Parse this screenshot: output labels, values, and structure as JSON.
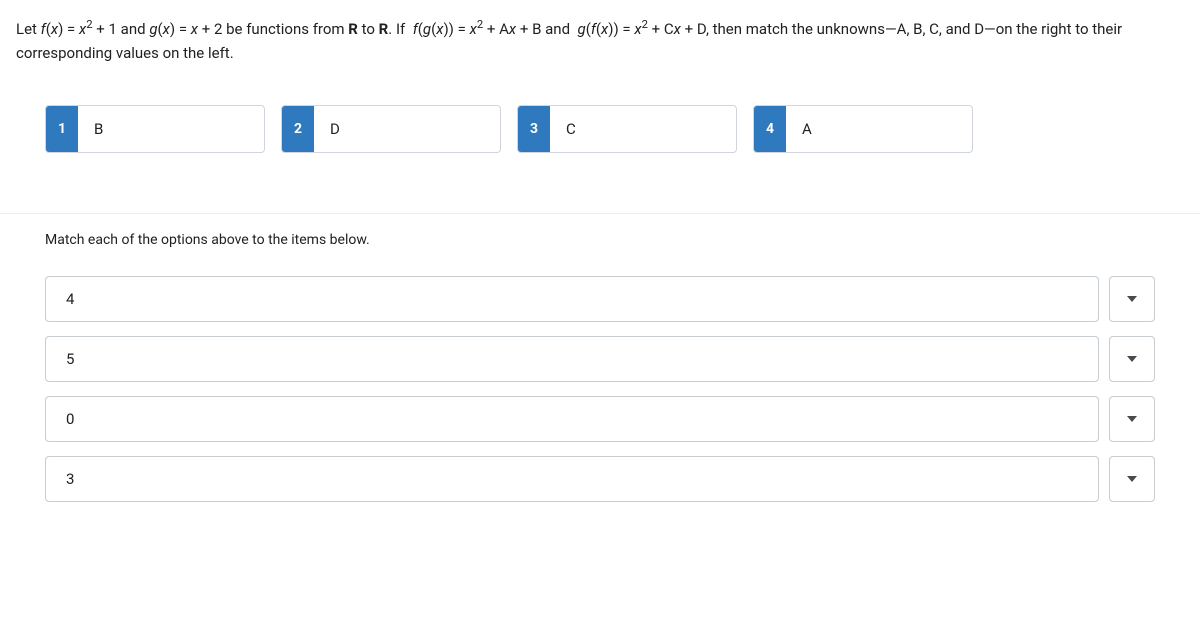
{
  "question_html": "Let <span class='fn'>f</span>(<span class='fn'>x</span>) = <span class='fn'>x</span><sup>2</sup> + 1 and <span class='fn'>g</span>(<span class='fn'>x</span>) = <span class='fn'>x</span> + 2 be functions from <span class='bold'>R</span> to <span class='bold'>R</span>. If &nbsp;<span class='fn'>f</span>(<span class='fn'>g</span>(<span class='fn'>x</span>)) = <span class='fn'>x</span><sup>2</sup> + A<span class='fn'>x</span> + B and &nbsp;<span class='fn'>g</span>(<span class='fn'>f</span>(<span class='fn'>x</span>)) = <span class='fn'>x</span><sup>2</sup> + C<span class='fn'>x</span> + D, then match the unknowns—A, B, C, and D—on the right to their corresponding values on the left.",
  "options": [
    {
      "num": "1",
      "label": "B"
    },
    {
      "num": "2",
      "label": "D"
    },
    {
      "num": "3",
      "label": "C"
    },
    {
      "num": "4",
      "label": "A"
    }
  ],
  "match_instruction": "Match each of the options above to the items below.",
  "items": [
    {
      "value": "4"
    },
    {
      "value": "5"
    },
    {
      "value": "0"
    },
    {
      "value": "3"
    }
  ],
  "colors": {
    "option_num_bg": "#2f7abf",
    "border": "#c7ccd1",
    "text": "#212121"
  }
}
